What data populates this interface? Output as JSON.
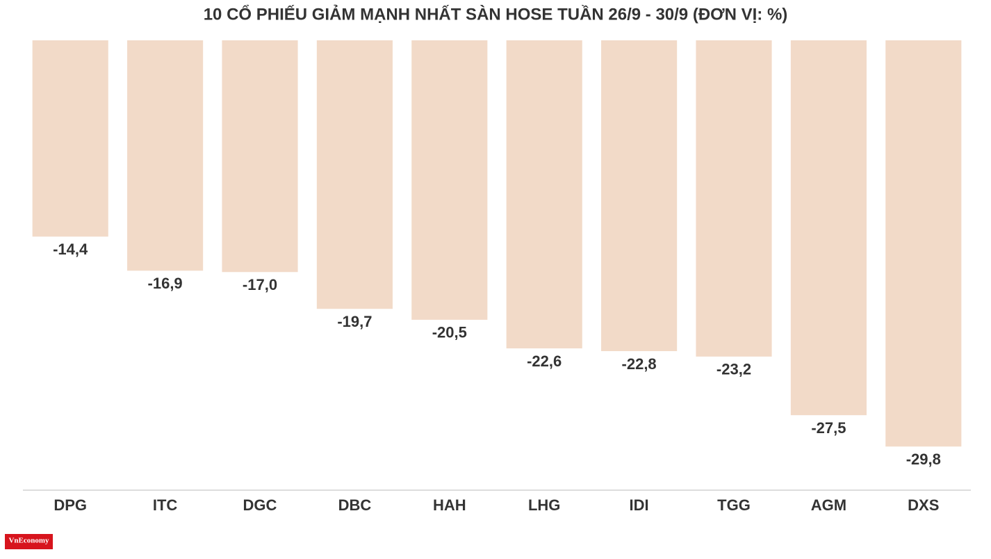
{
  "chart_data": {
    "type": "bar",
    "title": "10 CỔ PHIẾU GIẢM MẠNH NHẤT SÀN HOSE TUẦN 26/9 - 30/9 (ĐƠN VỊ: %)",
    "categories": [
      "DPG",
      "ITC",
      "DGC",
      "DBC",
      "HAH",
      "LHG",
      "IDI",
      "TGG",
      "AGM",
      "DXS"
    ],
    "values": [
      -14.4,
      -16.9,
      -17.0,
      -19.7,
      -20.5,
      -22.6,
      -22.8,
      -23.2,
      -27.5,
      -29.8
    ],
    "value_labels": [
      "-14,4",
      "-16,9",
      "-17,0",
      "-19,7",
      "-20,5",
      "-22,6",
      "-22,8",
      "-23,2",
      "-27,5",
      "-29,8"
    ],
    "color": "#f2dac8",
    "ylim": [
      -33,
      0
    ]
  },
  "logo": "VnEconomy"
}
